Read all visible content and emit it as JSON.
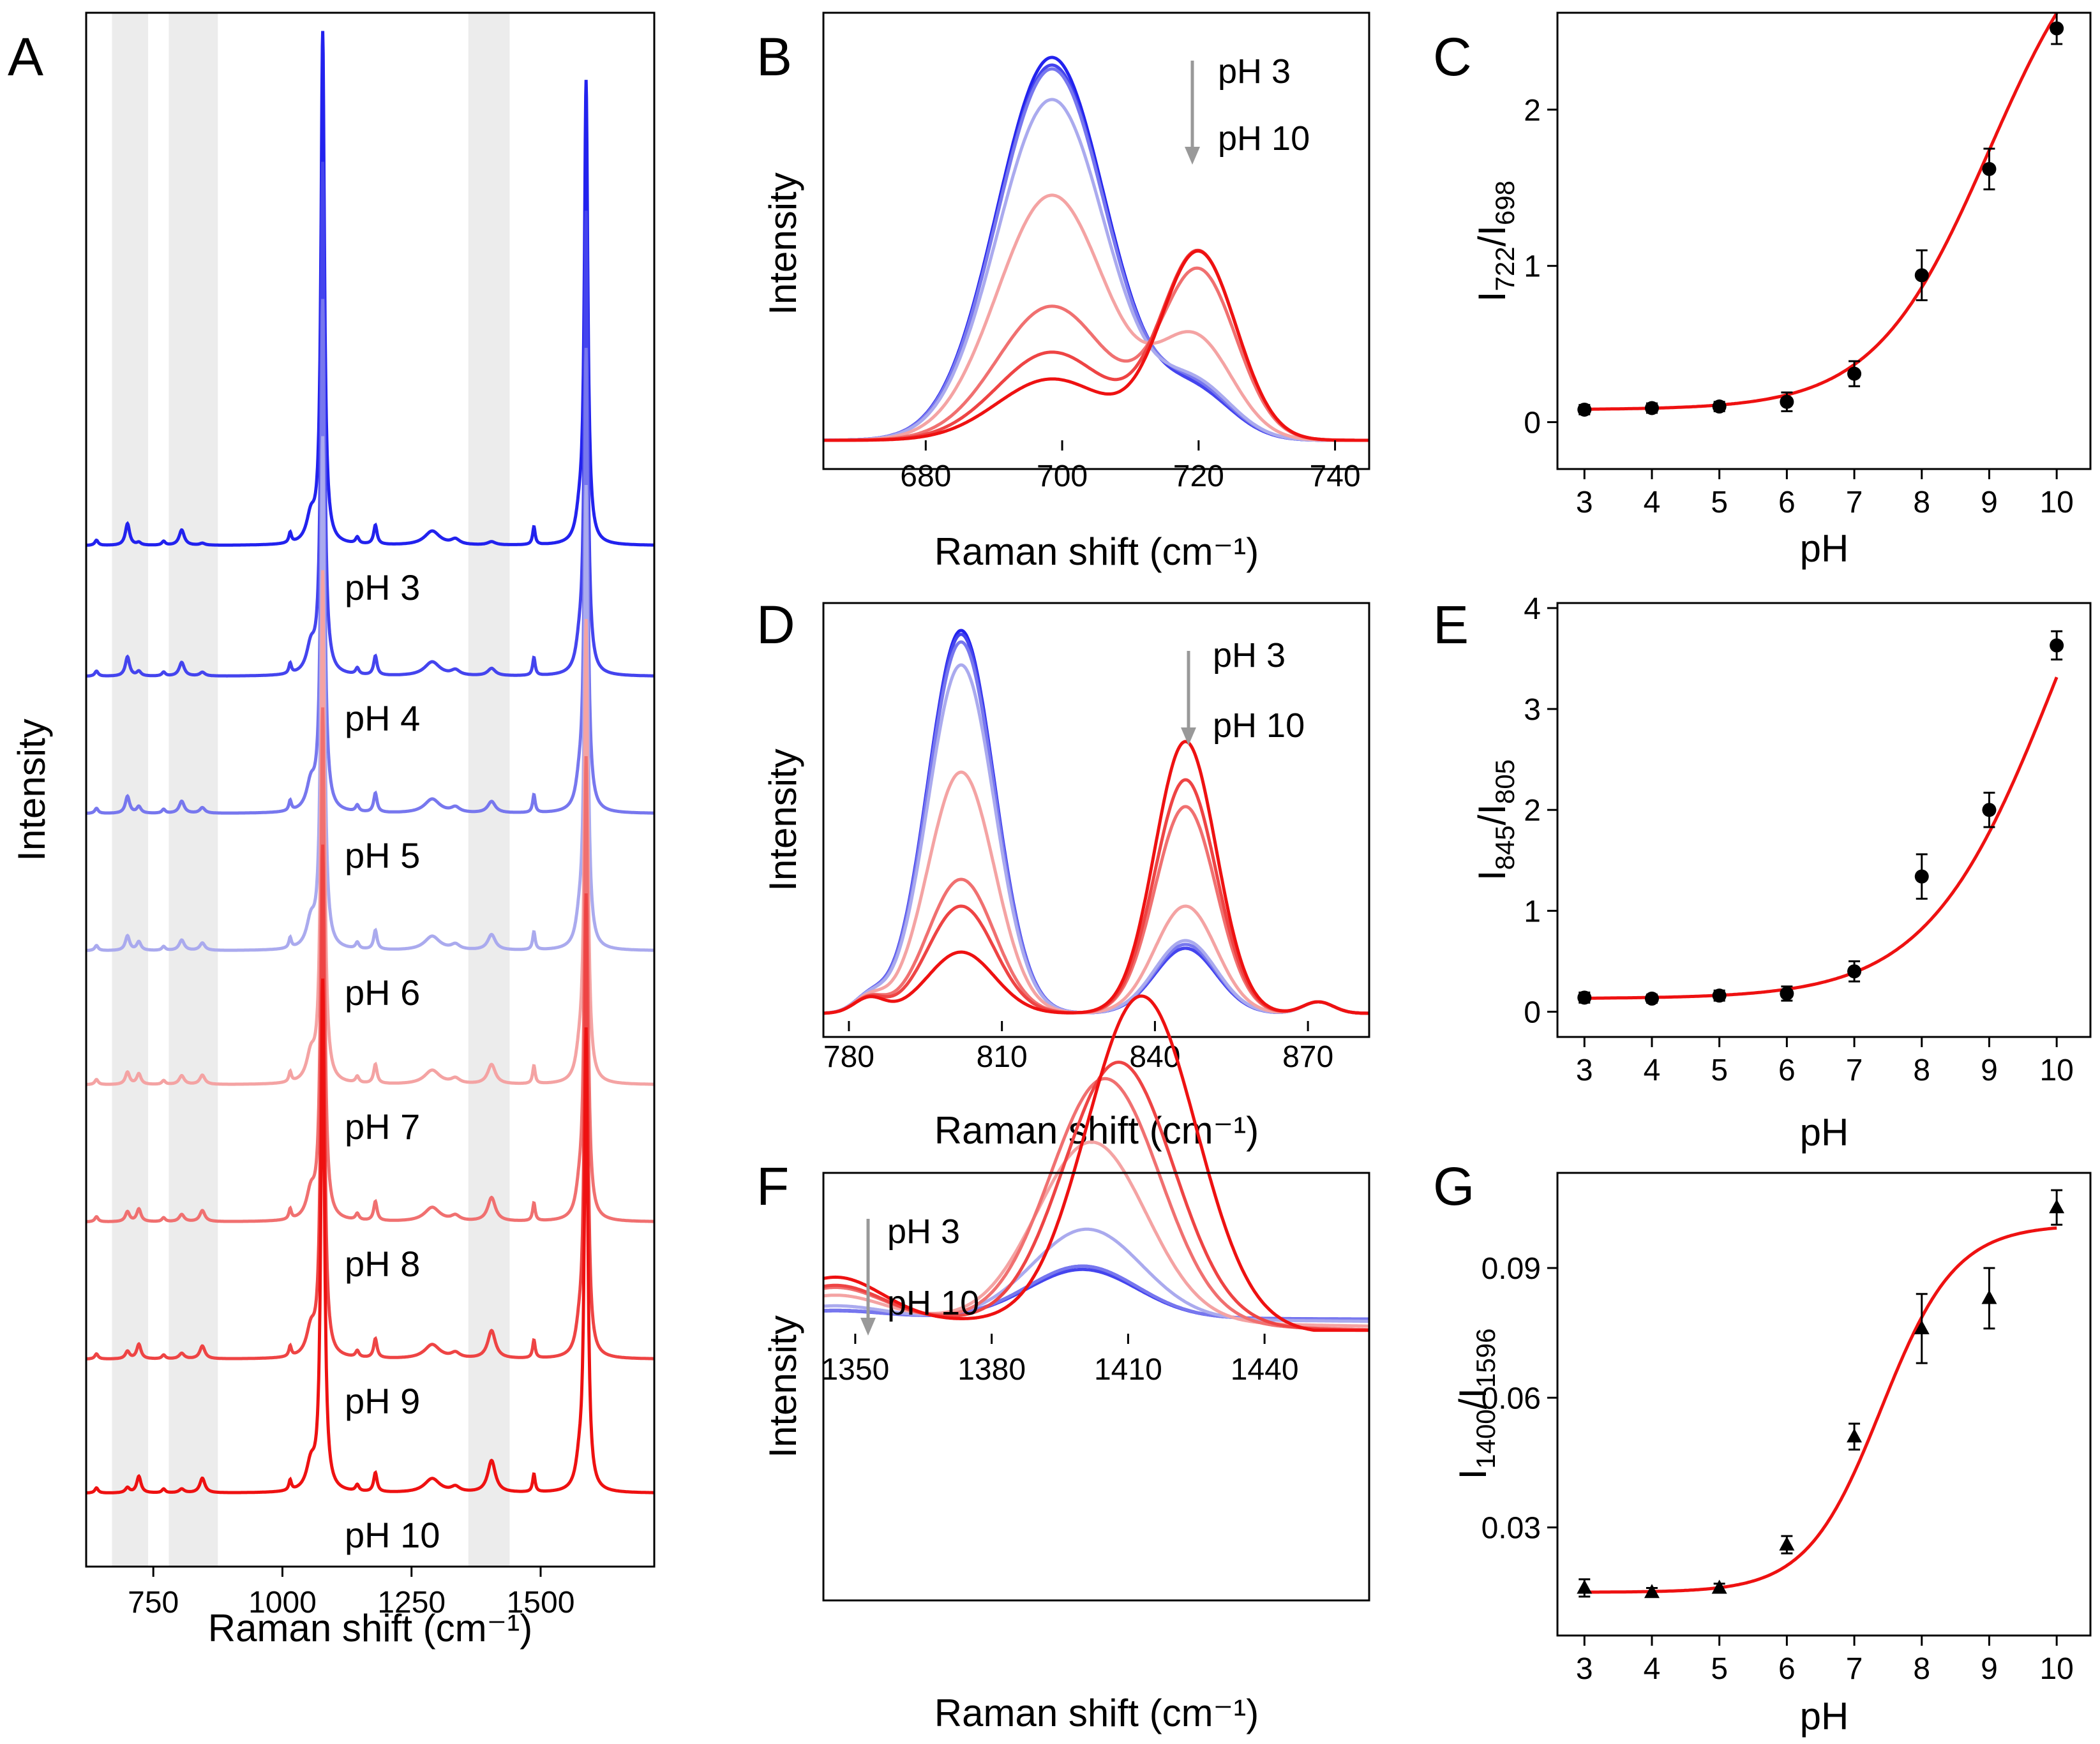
{
  "chart_data": [
    {
      "panel": "A",
      "type": "line",
      "xlabel": "Raman shift (cm⁻¹)",
      "ylabel": "Intensity",
      "xlim": [
        620,
        1720
      ],
      "xticks": [
        750,
        1000,
        1250,
        1500
      ],
      "shaded_bands": [
        [
          670,
          740
        ],
        [
          780,
          875
        ],
        [
          1360,
          1440
        ]
      ],
      "series": [
        {
          "name": "pH 3",
          "color": "#2222ee"
        },
        {
          "name": "pH 4",
          "color": "#4444ee"
        },
        {
          "name": "pH 5",
          "color": "#7777ee"
        },
        {
          "name": "pH 6",
          "color": "#aaaaee"
        },
        {
          "name": "pH 7",
          "color": "#f4a3a3"
        },
        {
          "name": "pH 8",
          "color": "#f07070"
        },
        {
          "name": "pH 9",
          "color": "#ee4444"
        },
        {
          "name": "pH 10",
          "color": "#ee1111"
        }
      ]
    },
    {
      "panel": "B",
      "type": "line",
      "xlabel": "Raman shift (cm⁻¹)",
      "ylabel": "Intensity",
      "xlim": [
        665,
        745
      ],
      "xticks": [
        680,
        700,
        720,
        740
      ],
      "annotation": {
        "from": "pH 3",
        "to": "pH 10"
      },
      "peaks": [
        698,
        722
      ],
      "series": [
        {
          "name": "pH 3",
          "peak698": 1.0,
          "peak722": 0.12
        },
        {
          "name": "pH 4",
          "peak698": 0.98,
          "peak722": 0.12
        },
        {
          "name": "pH 5",
          "peak698": 0.97,
          "peak722": 0.13
        },
        {
          "name": "pH 6",
          "peak698": 0.89,
          "peak722": 0.14
        },
        {
          "name": "pH 7",
          "peak698": 0.64,
          "peak722": 0.26
        },
        {
          "name": "pH 8",
          "peak698": 0.35,
          "peak722": 0.44
        },
        {
          "name": "pH 9",
          "peak698": 0.23,
          "peak722": 0.49
        },
        {
          "name": "pH 10",
          "peak698": 0.16,
          "peak722": 0.49
        }
      ]
    },
    {
      "panel": "C",
      "type": "scatter",
      "xlabel": "pH",
      "ylabel_base": "I",
      "ylabel_sub1": "722",
      "ylabel_sub2": "698",
      "xlim": [
        2.6,
        10.5
      ],
      "ylim": [
        -0.3,
        2.62
      ],
      "xticks": [
        3,
        4,
        5,
        6,
        7,
        8,
        9,
        10
      ],
      "yticks": [
        0,
        1,
        2
      ],
      "marker": "circle",
      "x": [
        3,
        4,
        5,
        6,
        7,
        8,
        9,
        10
      ],
      "y": [
        0.08,
        0.09,
        0.1,
        0.13,
        0.31,
        0.94,
        1.62,
        2.52
      ],
      "err": [
        0.03,
        0.03,
        0.03,
        0.06,
        0.08,
        0.16,
        0.13,
        0.1
      ],
      "fit": {
        "type": "sigmoid",
        "A1": 0.08,
        "A2": 3.4,
        "x0": 9.0,
        "dx": 0.85
      }
    },
    {
      "panel": "D",
      "type": "line",
      "xlabel": "Raman shift (cm⁻¹)",
      "ylabel": "Intensity",
      "xlim": [
        775,
        882
      ],
      "xticks": [
        780,
        810,
        840,
        870
      ],
      "annotation": {
        "from": "pH 3",
        "to": "pH 10"
      },
      "peaks": [
        805,
        845
      ],
      "series": [
        {
          "name": "pH 3",
          "peak805": 1.0,
          "peak845": 0.17
        },
        {
          "name": "pH 4",
          "peak805": 0.99,
          "peak845": 0.17
        },
        {
          "name": "pH 5",
          "peak805": 0.97,
          "peak845": 0.18
        },
        {
          "name": "pH 6",
          "peak805": 0.91,
          "peak845": 0.19
        },
        {
          "name": "pH 7",
          "peak805": 0.63,
          "peak845": 0.28
        },
        {
          "name": "pH 8",
          "peak805": 0.35,
          "peak845": 0.54
        },
        {
          "name": "pH 9",
          "peak805": 0.28,
          "peak845": 0.61
        },
        {
          "name": "pH 10",
          "peak805": 0.16,
          "peak845": 0.71
        }
      ]
    },
    {
      "panel": "E",
      "type": "scatter",
      "xlabel": "pH",
      "ylabel_base": "I",
      "ylabel_sub1": "845",
      "ylabel_sub2": "805",
      "xlim": [
        2.6,
        10.5
      ],
      "ylim": [
        -0.25,
        4.05
      ],
      "xticks": [
        3,
        4,
        5,
        6,
        7,
        8,
        9,
        10
      ],
      "yticks": [
        0,
        1,
        2,
        3,
        4
      ],
      "marker": "circle",
      "x": [
        3,
        4,
        5,
        6,
        7,
        8,
        9,
        10
      ],
      "y": [
        0.14,
        0.13,
        0.16,
        0.18,
        0.4,
        1.34,
        2.0,
        3.63
      ],
      "err": [
        0.05,
        0.04,
        0.05,
        0.07,
        0.1,
        0.22,
        0.17,
        0.14
      ],
      "fit": {
        "type": "sigmoid",
        "A1": 0.13,
        "A2": 6.5,
        "x0": 10.0,
        "dx": 0.95
      }
    },
    {
      "panel": "F",
      "type": "line",
      "xlabel": "Raman shift (cm⁻¹)",
      "ylabel": "Intensity",
      "xlim": [
        1343,
        1463
      ],
      "xticks": [
        1350,
        1380,
        1410,
        1440
      ],
      "annotation": {
        "from": "pH 3",
        "to": "pH 10"
      },
      "peaks": [
        1400
      ],
      "series": [
        {
          "name": "pH 3",
          "peak1400": 0.15,
          "center": 1400
        },
        {
          "name": "pH 4",
          "peak1400": 0.14,
          "center": 1400
        },
        {
          "name": "pH 5",
          "peak1400": 0.15,
          "center": 1400
        },
        {
          "name": "pH 6",
          "peak1400": 0.26,
          "center": 1401
        },
        {
          "name": "pH 7",
          "peak1400": 0.52,
          "center": 1402
        },
        {
          "name": "pH 8",
          "peak1400": 0.71,
          "center": 1405
        },
        {
          "name": "pH 9",
          "peak1400": 0.76,
          "center": 1408
        },
        {
          "name": "pH 10",
          "peak1400": 0.96,
          "center": 1413
        }
      ]
    },
    {
      "panel": "G",
      "type": "scatter",
      "xlabel": "pH",
      "ylabel_base": "I",
      "ylabel_sub1": "1400",
      "ylabel_sub2": "1596",
      "xlim": [
        2.6,
        10.5
      ],
      "ylim": [
        0.005,
        0.112
      ],
      "xticks": [
        3,
        4,
        5,
        6,
        7,
        8,
        9,
        10
      ],
      "yticks": [
        0.03,
        0.06,
        0.09
      ],
      "ytick_labels": [
        "0.03",
        "0.06",
        "0.09"
      ],
      "marker": "triangle",
      "x": [
        3,
        4,
        5,
        6,
        7,
        8,
        9,
        10
      ],
      "y": [
        0.016,
        0.015,
        0.016,
        0.026,
        0.051,
        0.076,
        0.083,
        0.104
      ],
      "err": [
        0.002,
        0.001,
        0.001,
        0.002,
        0.003,
        0.008,
        0.007,
        0.004
      ],
      "fit": {
        "type": "sigmoid",
        "A1": 0.015,
        "A2": 0.1,
        "x0": 7.4,
        "dx": 0.55
      }
    }
  ]
}
